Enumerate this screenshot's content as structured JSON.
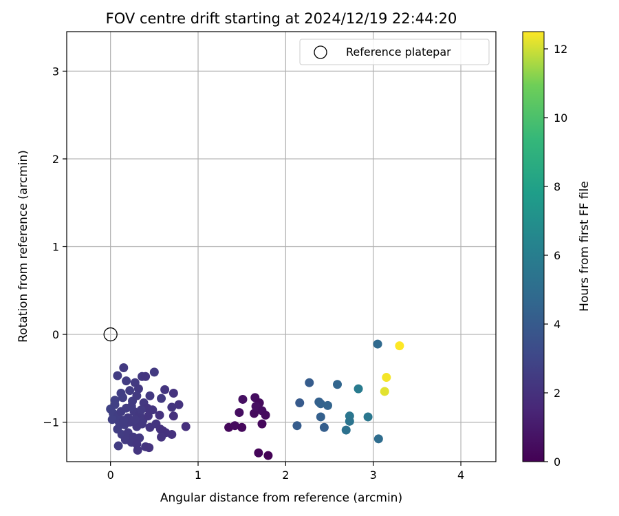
{
  "chart_data": {
    "type": "scatter",
    "title": "FOV centre drift starting at 2024/12/19 22:44:20",
    "xlabel": "Angular distance from reference (arcmin)",
    "ylabel": "Rotation from reference (arcmin)",
    "xlim": [
      -0.5,
      4.4
    ],
    "ylim": [
      -1.45,
      3.45
    ],
    "xticks": [
      0,
      1,
      2,
      3,
      4
    ],
    "yticks": [
      -1,
      0,
      1,
      2,
      3
    ],
    "xtick_labels": [
      "0",
      "1",
      "2",
      "3",
      "4"
    ],
    "ytick_labels": [
      "−1",
      "0",
      "1",
      "2",
      "3"
    ],
    "grid": true,
    "legend": {
      "position": "top-right",
      "label": "Reference platepar"
    },
    "reference_point": {
      "x": 0,
      "y": 0
    },
    "colorbar": {
      "label": "Hours from first FF file",
      "colormap": "viridis",
      "range": [
        0,
        12.5
      ],
      "ticks": [
        0,
        2,
        4,
        6,
        8,
        10,
        12
      ],
      "tick_labels": [
        "0",
        "2",
        "4",
        "6",
        "8",
        "10",
        "12"
      ]
    },
    "series": [
      {
        "points": [
          {
            "x": 1.35,
            "y": -1.06,
            "h": 0.3
          },
          {
            "x": 1.42,
            "y": -1.04,
            "h": 0.4
          },
          {
            "x": 1.5,
            "y": -1.06,
            "h": 0.3
          },
          {
            "x": 1.47,
            "y": -0.89,
            "h": 0.5
          },
          {
            "x": 1.51,
            "y": -0.74,
            "h": 0.6
          },
          {
            "x": 1.64,
            "y": -0.9,
            "h": 0.4
          },
          {
            "x": 1.65,
            "y": -0.72,
            "h": 0.5
          },
          {
            "x": 1.7,
            "y": -0.78,
            "h": 0.4
          },
          {
            "x": 1.66,
            "y": -0.82,
            "h": 0.6
          },
          {
            "x": 1.73,
            "y": -0.87,
            "h": 0.5
          },
          {
            "x": 1.77,
            "y": -0.92,
            "h": 0.4
          },
          {
            "x": 1.73,
            "y": -1.02,
            "h": 0.3
          },
          {
            "x": 1.69,
            "y": -1.35,
            "h": 0.2
          },
          {
            "x": 1.8,
            "y": -1.38,
            "h": 0.1
          },
          {
            "x": 0.15,
            "y": -0.38,
            "h": 2.4
          },
          {
            "x": 0.08,
            "y": -0.47,
            "h": 2.5
          },
          {
            "x": 0.5,
            "y": -0.43,
            "h": 2.4
          },
          {
            "x": 0.36,
            "y": -0.48,
            "h": 2.3
          },
          {
            "x": 0.4,
            "y": -0.48,
            "h": 2.2
          },
          {
            "x": 0.28,
            "y": -0.55,
            "h": 2.4
          },
          {
            "x": 0.18,
            "y": -0.53,
            "h": 2.5
          },
          {
            "x": 0.32,
            "y": -0.62,
            "h": 2.3
          },
          {
            "x": 0.62,
            "y": -0.63,
            "h": 2.2
          },
          {
            "x": 0.72,
            "y": -0.67,
            "h": 2.1
          },
          {
            "x": 0.45,
            "y": -0.7,
            "h": 2.3
          },
          {
            "x": 0.58,
            "y": -0.73,
            "h": 2.4
          },
          {
            "x": 0.78,
            "y": -0.8,
            "h": 2.1
          },
          {
            "x": 0.7,
            "y": -0.83,
            "h": 2.2
          },
          {
            "x": 0.12,
            "y": -0.67,
            "h": 2.6
          },
          {
            "x": 0.22,
            "y": -0.64,
            "h": 2.5
          },
          {
            "x": 0.05,
            "y": -0.75,
            "h": 2.7
          },
          {
            "x": 0.14,
            "y": -0.72,
            "h": 2.6
          },
          {
            "x": 0.25,
            "y": -0.76,
            "h": 2.5
          },
          {
            "x": 0.3,
            "y": -0.7,
            "h": 2.4
          },
          {
            "x": 0.38,
            "y": -0.78,
            "h": 2.3
          },
          {
            "x": 0.42,
            "y": -0.84,
            "h": 2.2
          },
          {
            "x": 0.48,
            "y": -0.86,
            "h": 2.2
          },
          {
            "x": 0.0,
            "y": -0.85,
            "h": 2.8
          },
          {
            "x": 0.03,
            "y": -0.9,
            "h": 2.7
          },
          {
            "x": 0.08,
            "y": -0.93,
            "h": 2.6
          },
          {
            "x": 0.12,
            "y": -0.88,
            "h": 2.5
          },
          {
            "x": 0.18,
            "y": -0.84,
            "h": 2.5
          },
          {
            "x": 0.2,
            "y": -0.95,
            "h": 2.4
          },
          {
            "x": 0.27,
            "y": -0.88,
            "h": 2.4
          },
          {
            "x": 0.33,
            "y": -0.92,
            "h": 2.3
          },
          {
            "x": 0.37,
            "y": -0.98,
            "h": 2.3
          },
          {
            "x": 0.43,
            "y": -0.93,
            "h": 2.2
          },
          {
            "x": 0.56,
            "y": -0.92,
            "h": 2.1
          },
          {
            "x": 0.72,
            "y": -0.93,
            "h": 2.0
          },
          {
            "x": 0.02,
            "y": -0.97,
            "h": 2.7
          },
          {
            "x": 0.1,
            "y": -1.0,
            "h": 2.6
          },
          {
            "x": 0.16,
            "y": -1.03,
            "h": 2.5
          },
          {
            "x": 0.22,
            "y": -1.0,
            "h": 2.4
          },
          {
            "x": 0.3,
            "y": -1.05,
            "h": 2.3
          },
          {
            "x": 0.36,
            "y": -1.02,
            "h": 2.3
          },
          {
            "x": 0.45,
            "y": -1.06,
            "h": 2.2
          },
          {
            "x": 0.52,
            "y": -1.02,
            "h": 2.2
          },
          {
            "x": 0.57,
            "y": -1.08,
            "h": 2.1
          },
          {
            "x": 0.6,
            "y": -1.1,
            "h": 2.0
          },
          {
            "x": 0.63,
            "y": -1.12,
            "h": 2.0
          },
          {
            "x": 0.58,
            "y": -1.17,
            "h": 2.1
          },
          {
            "x": 0.7,
            "y": -1.14,
            "h": 2.0
          },
          {
            "x": 0.86,
            "y": -1.05,
            "h": 1.9
          },
          {
            "x": 0.08,
            "y": -1.08,
            "h": 2.6
          },
          {
            "x": 0.13,
            "y": -1.14,
            "h": 2.5
          },
          {
            "x": 0.2,
            "y": -1.12,
            "h": 2.4
          },
          {
            "x": 0.26,
            "y": -1.17,
            "h": 2.3
          },
          {
            "x": 0.33,
            "y": -1.18,
            "h": 2.3
          },
          {
            "x": 0.17,
            "y": -1.2,
            "h": 2.4
          },
          {
            "x": 0.24,
            "y": -1.23,
            "h": 2.3
          },
          {
            "x": 0.09,
            "y": -1.27,
            "h": 2.5
          },
          {
            "x": 0.3,
            "y": -1.25,
            "h": 2.2
          },
          {
            "x": 0.4,
            "y": -1.28,
            "h": 2.2
          },
          {
            "x": 0.44,
            "y": -1.29,
            "h": 2.1
          },
          {
            "x": 0.31,
            "y": -1.32,
            "h": 2.2
          },
          {
            "x": 0.15,
            "y": -0.98,
            "h": 2.5
          },
          {
            "x": 0.24,
            "y": -0.82,
            "h": 2.5
          },
          {
            "x": 0.35,
            "y": -0.86,
            "h": 2.4
          },
          {
            "x": 0.05,
            "y": -0.8,
            "h": 2.7
          },
          {
            "x": 0.28,
            "y": -0.97,
            "h": 2.4
          },
          {
            "x": 2.13,
            "y": -1.04,
            "h": 4.1
          },
          {
            "x": 2.16,
            "y": -0.78,
            "h": 4.0
          },
          {
            "x": 2.27,
            "y": -0.55,
            "h": 4.1
          },
          {
            "x": 2.38,
            "y": -0.77,
            "h": 4.3
          },
          {
            "x": 2.4,
            "y": -0.79,
            "h": 4.4
          },
          {
            "x": 2.4,
            "y": -0.94,
            "h": 4.3
          },
          {
            "x": 2.44,
            "y": -1.06,
            "h": 4.2
          },
          {
            "x": 2.48,
            "y": -0.81,
            "h": 4.5
          },
          {
            "x": 2.59,
            "y": -0.57,
            "h": 4.6
          },
          {
            "x": 2.69,
            "y": -1.09,
            "h": 5.2
          },
          {
            "x": 2.73,
            "y": -0.93,
            "h": 5.5
          },
          {
            "x": 2.73,
            "y": -0.99,
            "h": 5.4
          },
          {
            "x": 2.83,
            "y": -0.62,
            "h": 5.8
          },
          {
            "x": 2.94,
            "y": -0.94,
            "h": 5.6
          },
          {
            "x": 3.05,
            "y": -0.11,
            "h": 4.8
          },
          {
            "x": 3.06,
            "y": -1.19,
            "h": 5.0
          },
          {
            "x": 3.13,
            "y": -0.65,
            "h": 12.2
          },
          {
            "x": 3.15,
            "y": -0.49,
            "h": 12.4
          },
          {
            "x": 3.3,
            "y": -0.13,
            "h": 12.5
          }
        ]
      }
    ]
  }
}
